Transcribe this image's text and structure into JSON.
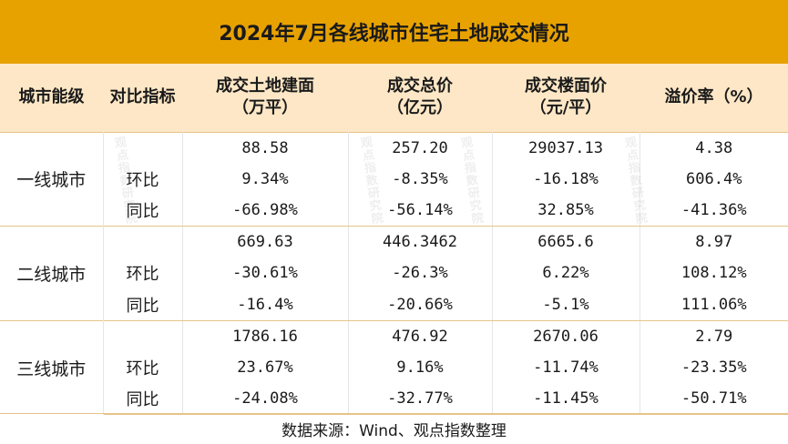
{
  "title": "2024年7月各线城市住宅土地成交情况",
  "headers": [
    "城市能级",
    "对比指标",
    "成交土地建面\n（万平）",
    "成交总价\n（亿元）",
    "成交楼面价\n（元/平）",
    "溢价率（%）"
  ],
  "header_lines": {
    "h0": "城市能级",
    "h1": "对比指标",
    "h2a": "成交土地建面",
    "h2b": "（万平）",
    "h3a": "成交总价",
    "h3b": "（亿元）",
    "h4a": "成交楼面价",
    "h4b": "（元/平）",
    "h5": "溢价率（%）"
  },
  "groups": [
    {
      "city": "一线城市",
      "rows": [
        {
          "metric": "",
          "area": "88.58",
          "total": "257.20",
          "price": "29037.13",
          "premium": "4.38"
        },
        {
          "metric": "环比",
          "area": "9.34%",
          "total": "-8.35%",
          "price": "-16.18%",
          "premium": "606.4%"
        },
        {
          "metric": "同比",
          "area": "-66.98%",
          "total": "-56.14%",
          "price": "32.85%",
          "premium": "-41.36%"
        }
      ]
    },
    {
      "city": "二线城市",
      "rows": [
        {
          "metric": "",
          "area": "669.63",
          "total": "446.3462",
          "price": "6665.6",
          "premium": "8.97"
        },
        {
          "metric": "环比",
          "area": "-30.61%",
          "total": "-26.3%",
          "price": "6.22%",
          "premium": "108.12%"
        },
        {
          "metric": "同比",
          "area": "-16.4%",
          "total": "-20.66%",
          "price": "-5.1%",
          "premium": "111.06%"
        }
      ]
    },
    {
      "city": "三线城市",
      "rows": [
        {
          "metric": "",
          "area": "1786.16",
          "total": "476.92",
          "price": "2670.06",
          "premium": "2.79"
        },
        {
          "metric": "环比",
          "area": "23.67%",
          "total": "9.16%",
          "price": "-11.74%",
          "premium": "-23.35%"
        },
        {
          "metric": "同比",
          "area": "-24.08%",
          "total": "-32.77%",
          "price": "-11.45%",
          "premium": "-50.71%"
        }
      ]
    }
  ],
  "footer": "数据来源：Wind、观点指数整理",
  "watermark_text": "观点指数研究院",
  "colors": {
    "title_bg": "#e8a200",
    "header_bg": "#fde7c6"
  }
}
